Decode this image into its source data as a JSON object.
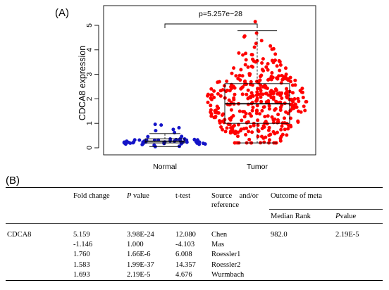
{
  "panel_a": {
    "label": "(A)",
    "ylabel": "CDCA8 expression",
    "pvalue": "p=5.257e−28",
    "yticks": [
      "0",
      "1",
      "2",
      "3",
      "4",
      "5"
    ],
    "categories": [
      "Normal",
      "Tumor"
    ]
  },
  "chart_data": {
    "type": "scatter",
    "title": "",
    "ylabel": "CDCA8 expression",
    "ylim": [
      0,
      5.2
    ],
    "categories": [
      "Normal",
      "Tumor"
    ],
    "annotation": "p=5.257e−28",
    "series": [
      {
        "color": "#1414c8",
        "box": {
          "whisker_low": 0.05,
          "q1": 0.2,
          "median": 0.27,
          "q3": 0.37,
          "whisker_high": 0.58
        },
        "n_points": 50,
        "outliers": [
          0.7,
          0.75,
          0.82,
          0.93,
          0.96
        ]
      },
      {
        "color": "#ff0000",
        "box": {
          "whisker_low": 0.2,
          "q1": 1.0,
          "median": 1.8,
          "q3": 2.62,
          "whisker_high": 4.78
        },
        "n_points": 380,
        "outliers": [
          5.15
        ]
      }
    ]
  },
  "panel_b": {
    "label": "(B)",
    "headers": {
      "fold_change": "Fold change",
      "p_value_italic": "P",
      "p_value_rest": " value",
      "t_test": "t-test",
      "source": "Source    and/or",
      "source2": "reference",
      "meta": "Outcome of meta",
      "median_rank": "Median Rank",
      "meta_p_italic": "P",
      "meta_p_rest": "value"
    },
    "gene": "CDCA8",
    "rows": [
      {
        "fold": "5.159",
        "p": "3.98E-24",
        "t": "12.080",
        "src": "Chen"
      },
      {
        "fold": "-1.146",
        "p": "1.000",
        "t": "-4.103",
        "src": "Mas"
      },
      {
        "fold": "1.760",
        "p": "1.66E-6",
        "t": "6.008",
        "src": "Roessler1"
      },
      {
        "fold": "1.583",
        "p": "1.99E-37",
        "t": "14.357",
        "src": "Roessler2"
      },
      {
        "fold": "1.693",
        "p": "2.19E-5",
        "t": "4.676",
        "src": "Wurmbach"
      }
    ],
    "median_rank_value": "982.0",
    "meta_p_value": "2.19E-5"
  }
}
